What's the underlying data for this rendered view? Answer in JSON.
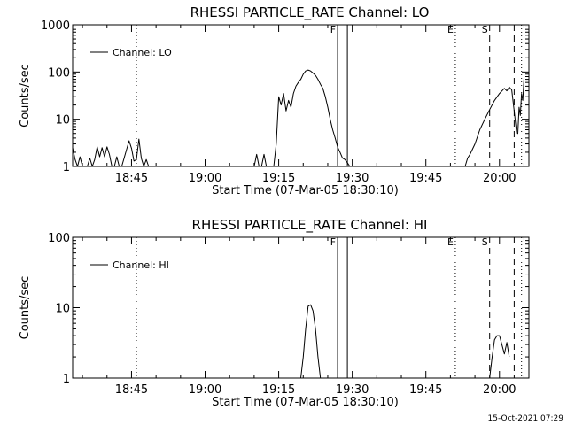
{
  "footer_timestamp": "15-Oct-2021 07:29",
  "chart_data": [
    {
      "type": "line",
      "title": "RHESSI PARTICLE_RATE Channel: LO",
      "xlabel": "Start Time (07-Mar-05 18:30:10)",
      "ylabel": "Counts/sec",
      "yscale": "log",
      "ylim": [
        1,
        1000
      ],
      "y_ticks": [
        1,
        10,
        100,
        1000
      ],
      "y_tick_labels": [
        "1",
        "10",
        "100",
        "1000"
      ],
      "xlim": [
        "18:33",
        "20:06"
      ],
      "x_ticks": [
        "18:45",
        "19:00",
        "19:15",
        "19:30",
        "19:45",
        "20:00"
      ],
      "legend": {
        "label": "Channel: LO",
        "position": "top-left"
      },
      "grid": false,
      "series": [
        {
          "name": "Channel: LO",
          "points": [
            [
              "18:33:00",
              2.5
            ],
            [
              "18:33:30",
              1.4
            ],
            [
              "18:34:00",
              1
            ],
            [
              "18:34:30",
              1.6
            ],
            [
              "18:35:00",
              1
            ],
            [
              "18:35:30",
              1
            ],
            [
              "18:36:00",
              1
            ],
            [
              "18:36:30",
              1.5
            ],
            [
              "18:37:00",
              1
            ],
            [
              "18:37:30",
              1.4
            ],
            [
              "18:38:00",
              2.6
            ],
            [
              "18:38:30",
              1.6
            ],
            [
              "18:39:00",
              2.5
            ],
            [
              "18:39:30",
              1.6
            ],
            [
              "18:40:00",
              2.6
            ],
            [
              "18:40:30",
              1.8
            ],
            [
              "18:41:00",
              1
            ],
            [
              "18:41:30",
              1
            ],
            [
              "18:42:00",
              1.6
            ],
            [
              "18:42:30",
              1
            ],
            [
              "18:43:00",
              1
            ],
            [
              "18:43:30",
              1.5
            ],
            [
              "18:44:00",
              2.3
            ],
            [
              "18:44:30",
              3.5
            ],
            [
              "18:45:00",
              2.4
            ],
            [
              "18:45:30",
              1.3
            ],
            [
              "18:46:00",
              1.4
            ],
            [
              "18:46:30",
              3.8
            ],
            [
              "18:47:00",
              1.5
            ],
            [
              "18:47:30",
              1
            ],
            [
              "18:48:00",
              1.4
            ],
            [
              "18:48:30",
              1
            ],
            [
              "18:49:00",
              1
            ],
            [
              "19:10:00",
              1
            ],
            [
              "19:10:30",
              1.8
            ],
            [
              "19:11:00",
              1
            ],
            [
              "19:11:30",
              1
            ],
            [
              "19:12:00",
              1.8
            ],
            [
              "19:12:30",
              1
            ],
            [
              "19:14:00",
              1
            ],
            [
              "19:14:30",
              3
            ],
            [
              "19:15:00",
              30
            ],
            [
              "19:15:30",
              20
            ],
            [
              "19:16:00",
              35
            ],
            [
              "19:16:30",
              15
            ],
            [
              "19:17:00",
              25
            ],
            [
              "19:17:30",
              18
            ],
            [
              "19:18:00",
              35
            ],
            [
              "19:18:30",
              50
            ],
            [
              "19:19:00",
              60
            ],
            [
              "19:19:30",
              70
            ],
            [
              "19:20:00",
              90
            ],
            [
              "19:20:30",
              105
            ],
            [
              "19:21:00",
              110
            ],
            [
              "19:21:30",
              105
            ],
            [
              "19:22:00",
              95
            ],
            [
              "19:22:30",
              85
            ],
            [
              "19:23:00",
              70
            ],
            [
              "19:23:30",
              55
            ],
            [
              "19:24:00",
              45
            ],
            [
              "19:24:30",
              30
            ],
            [
              "19:25:00",
              18
            ],
            [
              "19:25:30",
              10
            ],
            [
              "19:26:00",
              6
            ],
            [
              "19:26:30",
              4
            ],
            [
              "19:27:00",
              2.6
            ],
            [
              "19:27:30",
              2
            ],
            [
              "19:28:00",
              1.5
            ],
            [
              "19:28:30",
              1.4
            ],
            [
              "19:29:00",
              1.2
            ],
            [
              "19:29:30",
              1
            ],
            [
              "19:53:00",
              1
            ],
            [
              "19:53:30",
              1.5
            ],
            [
              "19:54:00",
              1.8
            ],
            [
              "19:55:00",
              3
            ],
            [
              "19:56:00",
              6
            ],
            [
              "19:57:00",
              10
            ],
            [
              "19:58:00",
              16
            ],
            [
              "19:59:00",
              25
            ],
            [
              "20:00:00",
              35
            ],
            [
              "20:01:00",
              45
            ],
            [
              "20:01:30",
              40
            ],
            [
              "20:02:00",
              48
            ],
            [
              "20:02:30",
              42
            ],
            [
              "20:03:00",
              15
            ],
            [
              "20:03:30",
              5
            ],
            [
              "20:03:45",
              5
            ],
            [
              "20:04:00",
              18
            ],
            [
              "20:04:15",
              12
            ],
            [
              "20:04:30",
              35
            ],
            [
              "20:04:45",
              25
            ],
            [
              "20:05:00",
              75
            ]
          ]
        }
      ],
      "vertical_markers": [
        {
          "time": "18:46:00",
          "style": "dotted",
          "label": ""
        },
        {
          "time": "19:27:00",
          "style": "solid",
          "label": "F"
        },
        {
          "time": "19:29:00",
          "style": "solid",
          "label": ""
        },
        {
          "time": "19:51:00",
          "style": "dotted",
          "label": "E"
        },
        {
          "time": "19:58:00",
          "style": "dashed",
          "label": "S"
        },
        {
          "time": "20:03:00",
          "style": "dashed",
          "label": ""
        },
        {
          "time": "20:04:30",
          "style": "dotted",
          "label": ""
        }
      ]
    },
    {
      "type": "line",
      "title": "RHESSI PARTICLE_RATE Channel: HI",
      "xlabel": "Start Time (07-Mar-05 18:30:10)",
      "ylabel": "Counts/sec",
      "yscale": "log",
      "ylim": [
        1,
        100
      ],
      "y_ticks": [
        1,
        10,
        100
      ],
      "y_tick_labels": [
        "1",
        "10",
        "100"
      ],
      "xlim": [
        "18:33",
        "20:06"
      ],
      "x_ticks": [
        "18:45",
        "19:00",
        "19:15",
        "19:30",
        "19:45",
        "20:00"
      ],
      "legend": {
        "label": "Channel: HI",
        "position": "top-left"
      },
      "grid": false,
      "series": [
        {
          "name": "Channel: HI",
          "points": [
            [
              "19:19:30",
              1
            ],
            [
              "19:20:00",
              2
            ],
            [
              "19:20:30",
              5
            ],
            [
              "19:21:00",
              10.5
            ],
            [
              "19:21:30",
              11
            ],
            [
              "19:22:00",
              9
            ],
            [
              "19:22:30",
              5
            ],
            [
              "19:23:00",
              2
            ],
            [
              "19:23:30",
              1
            ],
            [
              "19:58:00",
              1
            ],
            [
              "19:58:30",
              2
            ],
            [
              "19:59:00",
              3.5
            ],
            [
              "19:59:30",
              4
            ],
            [
              "20:00:00",
              4
            ],
            [
              "20:00:30",
              3
            ],
            [
              "20:01:00",
              2.2
            ],
            [
              "20:01:30",
              3.2
            ],
            [
              "20:02:00",
              2
            ]
          ]
        }
      ],
      "vertical_markers": [
        {
          "time": "18:46:00",
          "style": "dotted",
          "label": ""
        },
        {
          "time": "19:27:00",
          "style": "solid",
          "label": "F"
        },
        {
          "time": "19:29:00",
          "style": "solid",
          "label": ""
        },
        {
          "time": "19:51:00",
          "style": "dotted",
          "label": "E"
        },
        {
          "time": "19:58:00",
          "style": "dashed",
          "label": "S"
        },
        {
          "time": "20:03:00",
          "style": "dashed",
          "label": ""
        },
        {
          "time": "20:04:30",
          "style": "dotted",
          "label": ""
        }
      ]
    }
  ]
}
